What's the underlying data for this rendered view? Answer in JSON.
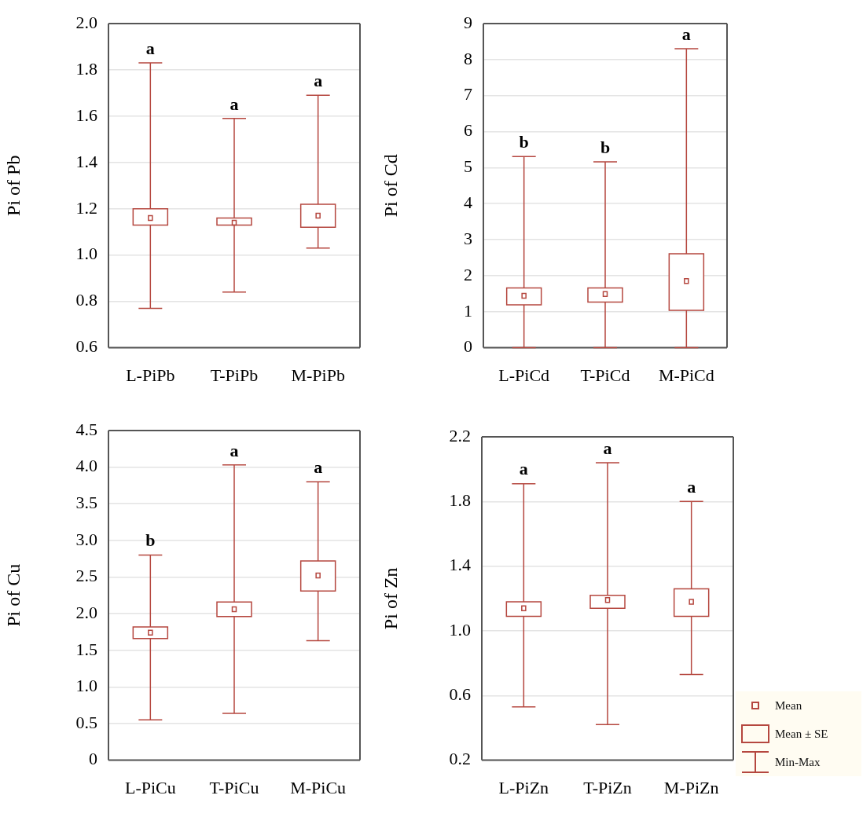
{
  "chart_data": [
    {
      "type": "box",
      "ylabel": "Pi of Pb",
      "categories": [
        "L-PiPb",
        "T-PiPb",
        "M-PiPb"
      ],
      "color": "#b5473f",
      "ylim": [
        0.6,
        2.0
      ],
      "yticks": [
        0.6,
        0.8,
        {
          "value": 1,
          "label": "1.0"
        },
        1.2,
        1.4,
        1.6,
        1.8,
        {
          "value": 2,
          "label": "2.0"
        }
      ],
      "grid": "y",
      "boxes": [
        {
          "low": 0.77,
          "q1": 1.13,
          "median": 1.16,
          "q3": 1.2,
          "high": 1.83
        },
        {
          "low": 0.84,
          "q1": 1.13,
          "median": 1.14,
          "q3": 1.16,
          "high": 1.59
        },
        {
          "low": 1.03,
          "q1": 1.12,
          "median": 1.17,
          "q3": 1.22,
          "high": 1.69
        }
      ],
      "annotations": [
        "a",
        "a",
        "a"
      ]
    },
    {
      "type": "box",
      "ylabel": "Pi of Cd",
      "categories": [
        "L-PiCd",
        "T-PiCd",
        "M-PiCd"
      ],
      "color": "#b5473f",
      "ylim": [
        0,
        9
      ],
      "yticks": [
        0,
        1,
        2,
        3,
        4,
        5,
        6,
        7,
        8,
        9
      ],
      "grid": "y",
      "boxes": [
        {
          "low": 0,
          "q1": 1.19,
          "median": 1.44,
          "q3": 1.66,
          "high": 5.31
        },
        {
          "low": 0,
          "q1": 1.27,
          "median": 1.49,
          "q3": 1.66,
          "high": 5.16
        },
        {
          "low": 0,
          "q1": 1.04,
          "median": 1.85,
          "q3": 2.61,
          "high": 8.3
        }
      ],
      "annotations": [
        "b",
        "b",
        "a"
      ]
    },
    {
      "type": "box",
      "ylabel": "Pi of Cu",
      "categories": [
        "L-PiCu",
        "T-PiCu",
        "M-PiCu"
      ],
      "color": "#b5473f",
      "ylim": [
        0,
        4.5
      ],
      "yticks": [
        0,
        0.5,
        {
          "value": 1,
          "label": "1.0"
        },
        1.5,
        {
          "value": 2,
          "label": "2.0"
        },
        2.5,
        {
          "value": 3,
          "label": "3.0"
        },
        3.5,
        {
          "value": 4,
          "label": "4.0"
        },
        4.5
      ],
      "grid": "y",
      "boxes": [
        {
          "low": 0.55,
          "q1": 1.66,
          "median": 1.74,
          "q3": 1.82,
          "high": 2.8
        },
        {
          "low": 0.64,
          "q1": 1.96,
          "median": 2.06,
          "q3": 2.16,
          "high": 4.03
        },
        {
          "low": 1.63,
          "q1": 2.31,
          "median": 2.52,
          "q3": 2.72,
          "high": 3.8
        }
      ],
      "annotations": [
        "b",
        "a",
        "a"
      ]
    },
    {
      "type": "box",
      "ylabel": "Pi of Zn",
      "categories": [
        "L-PiZn",
        "T-PiZn",
        "M-PiZn"
      ],
      "color": "#b5473f",
      "ylim": [
        0.2,
        2.2
      ],
      "yticks": [
        0.2,
        0.6,
        {
          "value": 1,
          "label": "1.0"
        },
        1.4,
        1.8,
        2.2
      ],
      "grid": "y",
      "boxes": [
        {
          "low": 0.53,
          "q1": 1.09,
          "median": 1.14,
          "q3": 1.18,
          "high": 1.91
        },
        {
          "low": 0.42,
          "q1": 1.14,
          "median": 1.19,
          "q3": 1.22,
          "high": 2.04
        },
        {
          "low": 0.73,
          "q1": 1.09,
          "median": 1.18,
          "q3": 1.26,
          "high": 1.8
        }
      ],
      "annotations": [
        "a",
        "a",
        "a",
        "Mean",
        "Mean ± SE",
        "Min-Max"
      ]
    }
  ]
}
